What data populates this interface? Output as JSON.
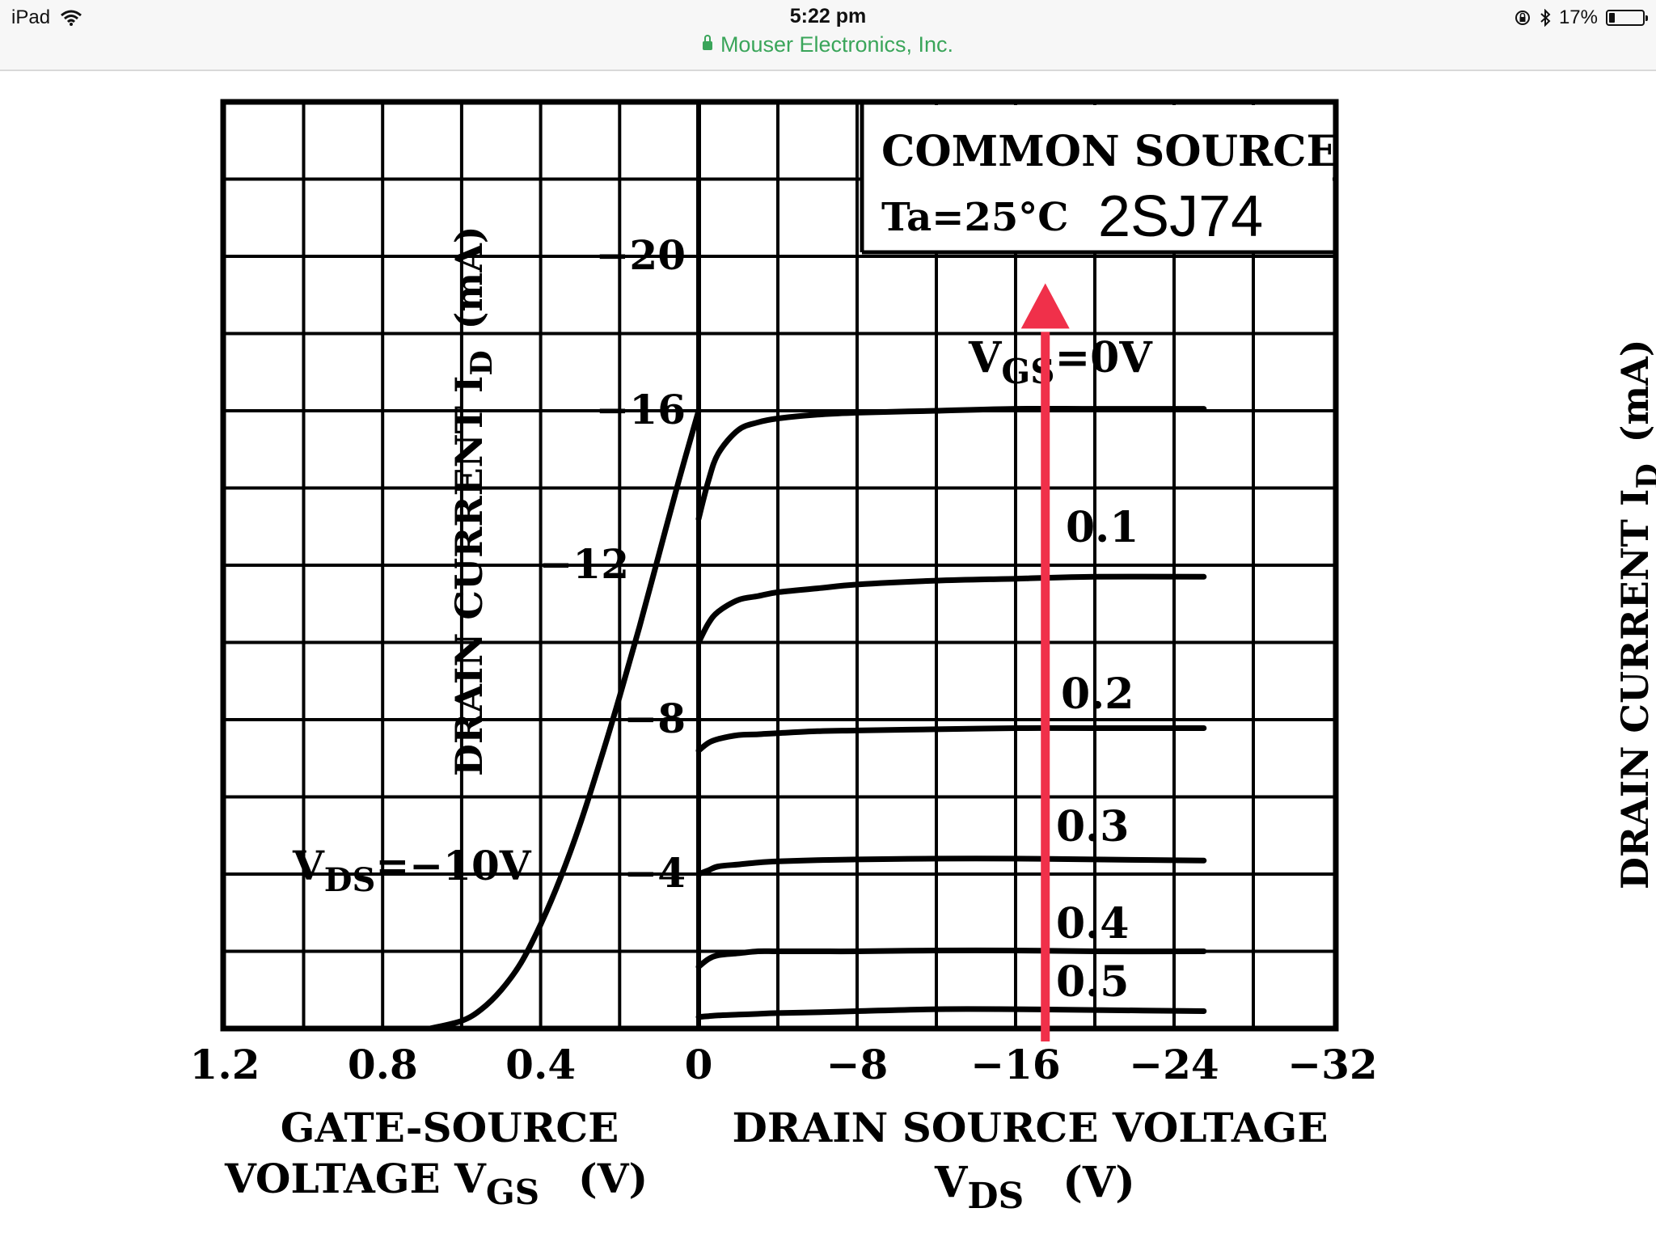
{
  "status_bar": {
    "device": "iPad",
    "time": "5:22 pm",
    "site": "Mouser Electronics, Inc.",
    "battery": "17%",
    "battery_level": 0.17,
    "icons": [
      "wifi-icon",
      "lock-icon",
      "orientation-lock-icon",
      "bluetooth-icon",
      "battery-icon"
    ]
  },
  "chart_data": {
    "type": "line",
    "title": "COMMON SOURCE",
    "condition": "Ta=25°C",
    "part_number": "2SJ74",
    "y_axis": {
      "label": "DRAIN CURRENT ID (mA)",
      "label_main": "DRAIN CURRENT I",
      "label_sub": "D",
      "label_unit": "(mA)",
      "ticks": [
        -20,
        -16,
        -12,
        -8,
        -4
      ],
      "tick_labels": [
        "−20",
        "−16",
        "−12",
        "−8",
        "−4"
      ],
      "range": [
        0,
        -24
      ]
    },
    "left_panel": {
      "name": "transfer characteristic",
      "x_ticks": [
        1.2,
        0.8,
        0.4,
        0
      ],
      "x_tick_labels": [
        "1.2",
        "0.8",
        "0.4",
        "0"
      ],
      "x_range": [
        1.2,
        0
      ],
      "xlabel_line1": "GATE-SOURCE",
      "xlabel_line2_main": "VOLTAGE V",
      "xlabel_line2_sub": "GS",
      "xlabel_unit": "(V)",
      "annotation_main": "V",
      "annotation_sub": "DS",
      "annotation_rest": "=−10V",
      "curve": {
        "vgs": [
          0.68,
          0.6,
          0.55,
          0.5,
          0.45,
          0.4,
          0.35,
          0.3,
          0.25,
          0.2,
          0.15,
          0.1,
          0.05,
          0.0
        ],
        "id": [
          0,
          -0.2,
          -0.5,
          -1.0,
          -1.7,
          -2.7,
          -3.9,
          -5.3,
          -6.9,
          -8.6,
          -10.4,
          -12.3,
          -14.2,
          -16.0
        ]
      }
    },
    "right_panel": {
      "name": "output characteristics",
      "x_ticks": [
        0,
        -8,
        -16,
        -24,
        -32
      ],
      "x_tick_labels": [
        "0",
        "−8",
        "−16",
        "−24",
        "−32"
      ],
      "x_range": [
        0,
        -32
      ],
      "xlabel_line1": "DRAIN SOURCE VOLTAGE",
      "xlabel_line2_main": "V",
      "xlabel_line2_sub": "DS",
      "xlabel_unit": "(V)",
      "x": [
        0,
        -0.5,
        -1,
        -2,
        -3,
        -4,
        -6,
        -8,
        -12,
        -16,
        -20,
        -25.5
      ],
      "series": [
        {
          "label_main": "V",
          "label_sub": "GS",
          "label_rest": "=0V",
          "vgs": 0.0,
          "id": [
            -13.2,
            -14.2,
            -14.9,
            -15.5,
            -15.7,
            -15.8,
            -15.9,
            -15.95,
            -16.0,
            -16.05,
            -16.05,
            -16.05
          ]
        },
        {
          "label_main": "0.1",
          "label_sub": "",
          "label_rest": "",
          "vgs": 0.1,
          "id": [
            -10.0,
            -10.5,
            -10.8,
            -11.1,
            -11.2,
            -11.3,
            -11.4,
            -11.5,
            -11.6,
            -11.65,
            -11.7,
            -11.7
          ]
        },
        {
          "label_main": "0.2",
          "label_sub": "",
          "label_rest": "",
          "vgs": 0.2,
          "id": [
            -7.2,
            -7.4,
            -7.5,
            -7.6,
            -7.62,
            -7.65,
            -7.7,
            -7.72,
            -7.75,
            -7.78,
            -7.78,
            -7.78
          ]
        },
        {
          "label_main": "0.3",
          "label_sub": "",
          "label_rest": "",
          "vgs": 0.3,
          "id": [
            -4.0,
            -4.1,
            -4.2,
            -4.25,
            -4.3,
            -4.33,
            -4.36,
            -4.38,
            -4.4,
            -4.4,
            -4.38,
            -4.35
          ]
        },
        {
          "label_main": "0.4",
          "label_sub": "",
          "label_rest": "",
          "vgs": 0.4,
          "id": [
            -1.6,
            -1.8,
            -1.9,
            -1.95,
            -2.0,
            -2.0,
            -2.0,
            -2.0,
            -2.02,
            -2.02,
            -2.0,
            -2.0
          ]
        },
        {
          "label_main": "0.5",
          "label_sub": "",
          "label_rest": "",
          "vgs": 0.5,
          "id": [
            -0.3,
            -0.32,
            -0.34,
            -0.36,
            -0.38,
            -0.4,
            -0.42,
            -0.45,
            -0.5,
            -0.5,
            -0.48,
            -0.45
          ]
        }
      ]
    },
    "annotation_arrow": {
      "vds": -17.5,
      "from_id": 0,
      "to_id": -19.3,
      "color": "#f0304a"
    },
    "grid": true,
    "colors": {
      "ink": "#000000",
      "arrow": "#f0304a"
    }
  },
  "right_edge_fragment": {
    "label_main": "DRAIN CURRENT I",
    "label_sub": "D",
    "label_unit": "(mA)"
  }
}
